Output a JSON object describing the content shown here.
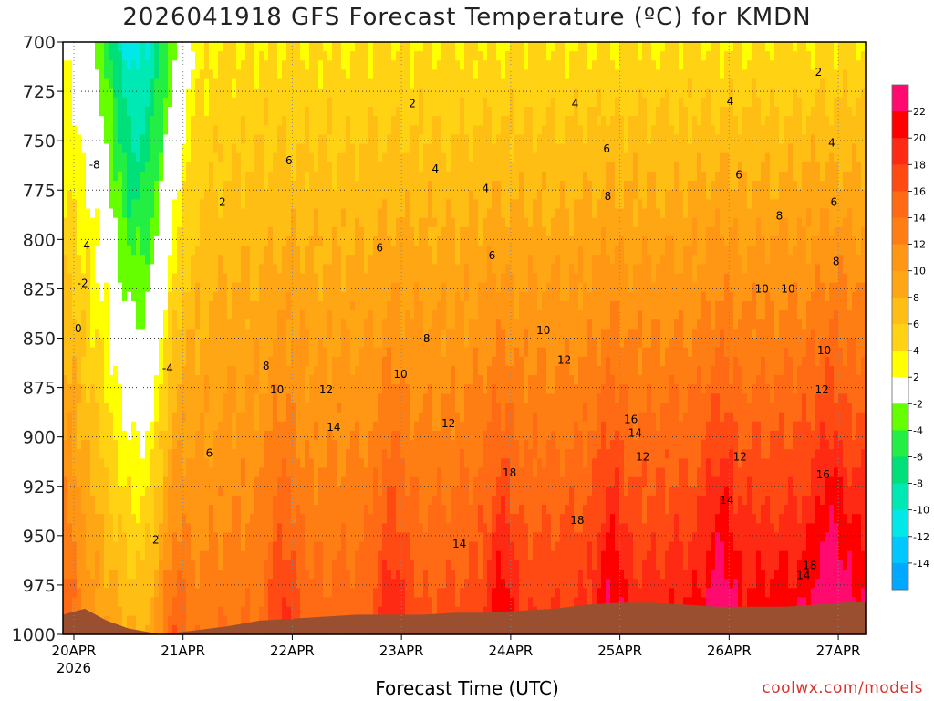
{
  "title": "2026041918 GFS Forecast Temperature (ºC) for KMDN",
  "xlabel": "Forecast Time (UTC)",
  "credit": "coolwx.com/models",
  "chart_data": {
    "type": "heatmap",
    "x_axis": {
      "label": "Forecast Time (UTC)",
      "ticks": [
        {
          "t": 0.5,
          "label": "20APR",
          "sub": "2026"
        },
        {
          "t": 1.5,
          "label": "21APR"
        },
        {
          "t": 2.5,
          "label": "22APR"
        },
        {
          "t": 3.5,
          "label": "23APR"
        },
        {
          "t": 4.5,
          "label": "24APR"
        },
        {
          "t": 5.5,
          "label": "25APR"
        },
        {
          "t": 6.5,
          "label": "26APR"
        },
        {
          "t": 7.5,
          "label": "27APR"
        }
      ],
      "range": [
        0.4,
        7.75
      ]
    },
    "y_axis": {
      "scale": "pressure",
      "ticks": [
        700,
        725,
        750,
        775,
        800,
        825,
        850,
        875,
        900,
        925,
        950,
        975,
        1000
      ],
      "range": [
        700,
        1000
      ]
    },
    "colorbar": {
      "labels": [
        "22",
        "20",
        "18",
        "16",
        "14",
        "12",
        "10",
        "8",
        "6",
        "4",
        "2",
        "-2",
        "-4",
        "-6",
        "-8",
        "-10",
        "-12",
        "-14"
      ],
      "colors": [
        "#ff0a6e",
        "#ff0000",
        "#ff2a14",
        "#ff4a14",
        "#ff6a14",
        "#ff7e14",
        "#ff9614",
        "#ffa614",
        "#ffbe14",
        "#ffd214",
        "#ffff00",
        "#ffffff",
        "#66ff00",
        "#22ee44",
        "#00e07a",
        "#00e8b4",
        "#00e8e8",
        "#00c8ff",
        "#00a8ff"
      ]
    },
    "grid": true,
    "terrain_color": "#9a5030",
    "contour_labels": [
      {
        "t": 0.69,
        "p": 764,
        "v": "-8"
      },
      {
        "t": 0.6,
        "p": 805,
        "v": "-4"
      },
      {
        "t": 0.58,
        "p": 824,
        "v": "-2"
      },
      {
        "t": 0.54,
        "p": 847,
        "v": "0"
      },
      {
        "t": 1.36,
        "p": 867,
        "v": "-4"
      },
      {
        "t": 1.25,
        "p": 954,
        "v": "2"
      },
      {
        "t": 1.86,
        "p": 783,
        "v": "2"
      },
      {
        "t": 1.74,
        "p": 910,
        "v": "6"
      },
      {
        "t": 2.47,
        "p": 762,
        "v": "6"
      },
      {
        "t": 2.26,
        "p": 866,
        "v": "8"
      },
      {
        "t": 2.36,
        "p": 878,
        "v": "10"
      },
      {
        "t": 2.81,
        "p": 878,
        "v": "12"
      },
      {
        "t": 2.88,
        "p": 897,
        "v": "14"
      },
      {
        "t": 3.6,
        "p": 733,
        "v": "2"
      },
      {
        "t": 3.81,
        "p": 766,
        "v": "4"
      },
      {
        "t": 3.3,
        "p": 806,
        "v": "6"
      },
      {
        "t": 3.73,
        "p": 852,
        "v": "8"
      },
      {
        "t": 3.49,
        "p": 870,
        "v": "10"
      },
      {
        "t": 3.93,
        "p": 895,
        "v": "12"
      },
      {
        "t": 4.27,
        "p": 776,
        "v": "4"
      },
      {
        "t": 4.33,
        "p": 810,
        "v": "6"
      },
      {
        "t": 4.49,
        "p": 920,
        "v": "18"
      },
      {
        "t": 4.03,
        "p": 956,
        "v": "14"
      },
      {
        "t": 5.09,
        "p": 733,
        "v": "4"
      },
      {
        "t": 5.38,
        "p": 756,
        "v": "6"
      },
      {
        "t": 5.39,
        "p": 780,
        "v": "8"
      },
      {
        "t": 4.8,
        "p": 848,
        "v": "10"
      },
      {
        "t": 4.99,
        "p": 863,
        "v": "12"
      },
      {
        "t": 5.11,
        "p": 944,
        "v": "18"
      },
      {
        "t": 5.6,
        "p": 893,
        "v": "16"
      },
      {
        "t": 5.64,
        "p": 900,
        "v": "14"
      },
      {
        "t": 5.71,
        "p": 912,
        "v": "12"
      },
      {
        "t": 6.51,
        "p": 732,
        "v": "4"
      },
      {
        "t": 6.59,
        "p": 769,
        "v": "6"
      },
      {
        "t": 6.96,
        "p": 790,
        "v": "8"
      },
      {
        "t": 6.8,
        "p": 827,
        "v": "10"
      },
      {
        "t": 7.04,
        "p": 827,
        "v": "10"
      },
      {
        "t": 6.6,
        "p": 912,
        "v": "12"
      },
      {
        "t": 6.48,
        "p": 934,
        "v": "14"
      },
      {
        "t": 7.32,
        "p": 717,
        "v": "2"
      },
      {
        "t": 7.44,
        "p": 753,
        "v": "4"
      },
      {
        "t": 7.46,
        "p": 783,
        "v": "6"
      },
      {
        "t": 7.48,
        "p": 813,
        "v": "8"
      },
      {
        "t": 7.37,
        "p": 858,
        "v": "10"
      },
      {
        "t": 7.35,
        "p": 878,
        "v": "12"
      },
      {
        "t": 7.36,
        "p": 921,
        "v": "16"
      },
      {
        "t": 7.24,
        "p": 967,
        "v": "18"
      },
      {
        "t": 7.18,
        "p": 972,
        "v": "14"
      }
    ]
  }
}
